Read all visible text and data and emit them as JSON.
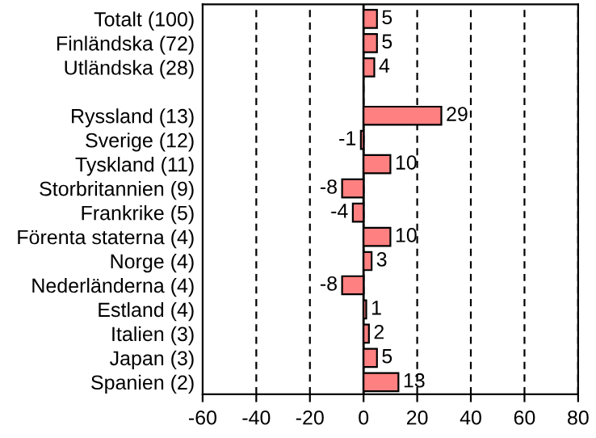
{
  "chart_data": {
    "type": "bar",
    "orientation": "horizontal",
    "categories": [
      "Totalt (100)",
      "Finländska (72)",
      "Utländska (28)",
      null,
      "Ryssland (13)",
      "Sverige (12)",
      "Tyskland (11)",
      "Storbritannien (9)",
      "Frankrike (5)",
      "Förenta staterna (4)",
      "Norge (4)",
      "Nederländerna (4)",
      "Estland (4)",
      "Italien (3)",
      "Japan (3)",
      "Spanien (2)"
    ],
    "values": [
      5,
      5,
      4,
      null,
      29,
      -1,
      10,
      -8,
      -4,
      10,
      3,
      -8,
      1,
      2,
      5,
      13
    ],
    "color": "#ff8080",
    "xlim": [
      -60,
      80
    ],
    "xticks": [
      -60,
      -40,
      -20,
      0,
      20,
      40,
      60,
      80
    ],
    "grid": "x",
    "data_labels": true,
    "ref_lines": [
      {
        "axis": "x",
        "value": 0,
        "color": "#000000",
        "line_style": "solid"
      }
    ]
  }
}
